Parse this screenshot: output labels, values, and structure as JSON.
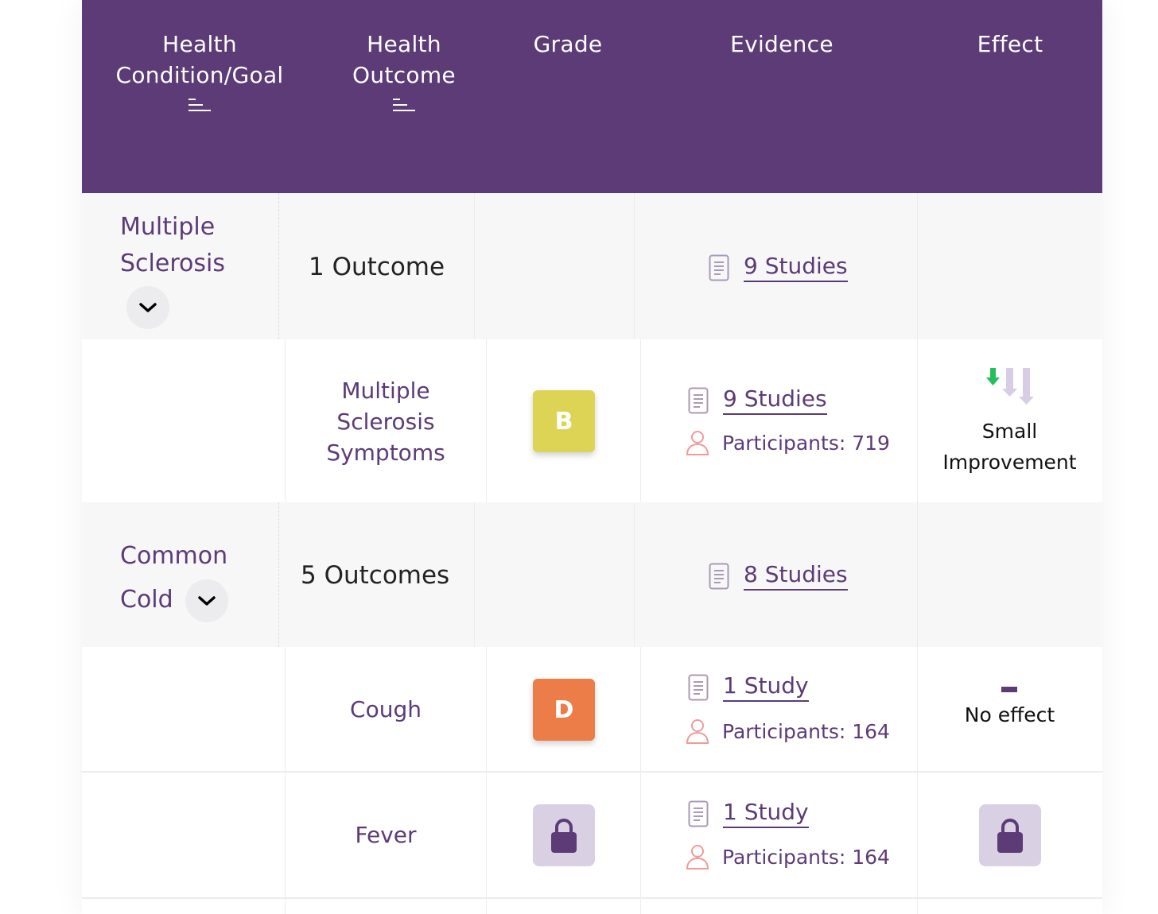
{
  "header": {
    "col1_line1": "Health",
    "col1_line2": "Condition/Goal",
    "col2_line1": "Health",
    "col2_line2": "Outcome",
    "col3": "Grade",
    "col4": "Evidence",
    "col5": "Effect"
  },
  "colors": {
    "header_bg": "#5c3b76",
    "grade_b": "#ddd456",
    "grade_d": "#ec7d49",
    "lock_bg": "#d9d0e3",
    "participant_icon": "#f19a9a"
  },
  "groups": [
    {
      "condition_line1": "Multiple",
      "condition_line2": "Sclerosis",
      "outcomes_count": "1 Outcome",
      "studies": "9 Studies",
      "rows": [
        {
          "outcome_line1": "Multiple",
          "outcome_line2": "Sclerosis",
          "outcome_line3": "Symptoms",
          "grade": "B",
          "studies": "9 Studies",
          "participants": "Participants: 719",
          "effect_line1": "Small",
          "effect_line2": "Improvement",
          "effect_icon": "small-improvement-arrows-icon"
        }
      ]
    },
    {
      "condition_line1": "Common",
      "condition_line2": "Cold",
      "outcomes_count": "5 Outcomes",
      "studies": "8 Studies",
      "rows": [
        {
          "outcome": "Cough",
          "grade": "D",
          "studies": "1 Study",
          "participants": "Participants: 164",
          "effect": "No effect",
          "effect_icon": "no-effect-dash-icon"
        },
        {
          "outcome": "Fever",
          "grade_icon": "lock-icon",
          "studies": "1 Study",
          "participants": "Participants: 164",
          "effect_icon": "lock-icon"
        }
      ]
    }
  ]
}
